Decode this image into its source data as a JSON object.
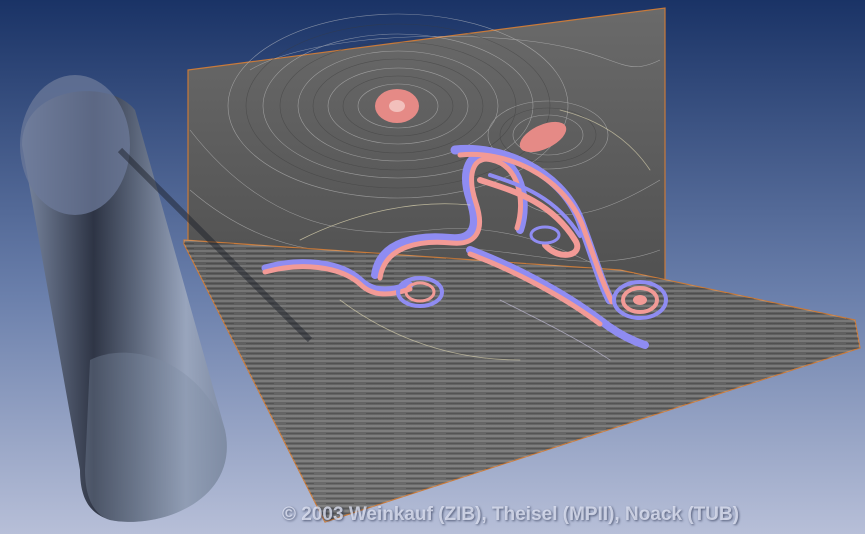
{
  "image": {
    "subject": "3D flow visualization",
    "copyright": "© 2003 Weinkauf (ZIB), Theisel (MPII), Noack (TUB)"
  },
  "colors": {
    "background_top": "#1a3366",
    "background_bottom": "#b7bfd8",
    "plane_fill": "#5f5f5f",
    "plane_edge": "#c87a3a",
    "streamline_pink": "#f29a96",
    "streamline_blue": "#8f8cf2",
    "cylinder": "#8a97ad"
  }
}
